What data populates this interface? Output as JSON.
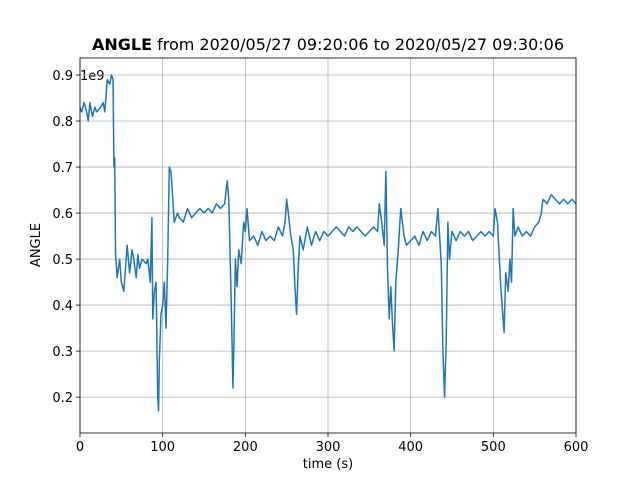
{
  "chart_data": {
    "type": "line",
    "title_name": "ANGLE",
    "title": "from 2020/05/27 09:20:06 to 2020/05/27 09:30:06",
    "xlabel": "time (s)",
    "ylabel": "ANGLE",
    "y_offset": "1e9",
    "color": "#1f77b4",
    "grid": true,
    "xlim": [
      0,
      600
    ],
    "xticks": [
      0,
      100,
      200,
      300,
      400,
      500,
      600
    ],
    "ylim": [
      0.122,
      0.937
    ],
    "yticks": [
      0.2,
      0.3,
      0.4,
      0.5,
      0.6,
      0.7,
      0.8,
      0.9
    ],
    "x": [
      0,
      2,
      5,
      8,
      10,
      12,
      15,
      18,
      20,
      25,
      28,
      30,
      33,
      36,
      38,
      40,
      41,
      42,
      43,
      45,
      48,
      50,
      53,
      55,
      57,
      60,
      63,
      65,
      68,
      70,
      72,
      75,
      80,
      82,
      85,
      87,
      88,
      90,
      92,
      94,
      95,
      96,
      98,
      100,
      102,
      104,
      106,
      108,
      110,
      112,
      114,
      118,
      120,
      125,
      130,
      135,
      140,
      145,
      150,
      155,
      160,
      165,
      170,
      175,
      178,
      180,
      183,
      185,
      186,
      188,
      190,
      192,
      195,
      198,
      200,
      202,
      205,
      210,
      215,
      220,
      225,
      230,
      235,
      240,
      245,
      248,
      250,
      252,
      255,
      258,
      260,
      262,
      264,
      266,
      270,
      275,
      280,
      285,
      290,
      295,
      300,
      305,
      310,
      315,
      320,
      325,
      330,
      335,
      340,
      345,
      350,
      355,
      360,
      362,
      365,
      368,
      370,
      372,
      374,
      376,
      378,
      380,
      382,
      385,
      388,
      390,
      392,
      395,
      400,
      405,
      410,
      415,
      420,
      425,
      430,
      433,
      435,
      437,
      439,
      441,
      443,
      445,
      447,
      450,
      455,
      460,
      465,
      470,
      475,
      480,
      485,
      490,
      495,
      500,
      502,
      505,
      507,
      509,
      511,
      513,
      515,
      518,
      520,
      522,
      524,
      526,
      530,
      535,
      540,
      545,
      550,
      555,
      558,
      560,
      565,
      570,
      575,
      580,
      585,
      590,
      595,
      600
    ],
    "values": [
      0.83,
      0.82,
      0.84,
      0.82,
      0.8,
      0.84,
      0.81,
      0.83,
      0.82,
      0.83,
      0.84,
      0.82,
      0.89,
      0.88,
      0.9,
      0.89,
      0.7,
      0.72,
      0.51,
      0.46,
      0.5,
      0.45,
      0.43,
      0.48,
      0.53,
      0.47,
      0.52,
      0.5,
      0.46,
      0.51,
      0.48,
      0.5,
      0.49,
      0.5,
      0.45,
      0.59,
      0.37,
      0.43,
      0.45,
      0.2,
      0.17,
      0.28,
      0.38,
      0.4,
      0.45,
      0.35,
      0.49,
      0.7,
      0.69,
      0.64,
      0.58,
      0.6,
      0.59,
      0.58,
      0.61,
      0.59,
      0.6,
      0.61,
      0.6,
      0.61,
      0.6,
      0.62,
      0.61,
      0.62,
      0.67,
      0.63,
      0.4,
      0.22,
      0.3,
      0.5,
      0.44,
      0.52,
      0.49,
      0.58,
      0.56,
      0.61,
      0.54,
      0.55,
      0.53,
      0.56,
      0.54,
      0.55,
      0.54,
      0.57,
      0.55,
      0.58,
      0.63,
      0.6,
      0.55,
      0.52,
      0.44,
      0.38,
      0.48,
      0.55,
      0.52,
      0.57,
      0.53,
      0.56,
      0.54,
      0.56,
      0.55,
      0.56,
      0.57,
      0.56,
      0.55,
      0.57,
      0.56,
      0.57,
      0.56,
      0.55,
      0.56,
      0.57,
      0.56,
      0.62,
      0.58,
      0.53,
      0.69,
      0.48,
      0.37,
      0.44,
      0.36,
      0.3,
      0.45,
      0.52,
      0.61,
      0.58,
      0.55,
      0.53,
      0.54,
      0.55,
      0.53,
      0.56,
      0.54,
      0.56,
      0.55,
      0.61,
      0.55,
      0.49,
      0.3,
      0.2,
      0.32,
      0.58,
      0.5,
      0.56,
      0.54,
      0.56,
      0.55,
      0.56,
      0.54,
      0.55,
      0.56,
      0.55,
      0.56,
      0.55,
      0.61,
      0.58,
      0.51,
      0.44,
      0.39,
      0.34,
      0.47,
      0.43,
      0.5,
      0.45,
      0.61,
      0.55,
      0.57,
      0.55,
      0.56,
      0.55,
      0.57,
      0.58,
      0.6,
      0.63,
      0.62,
      0.64,
      0.63,
      0.62,
      0.63,
      0.62,
      0.63,
      0.62
    ]
  }
}
